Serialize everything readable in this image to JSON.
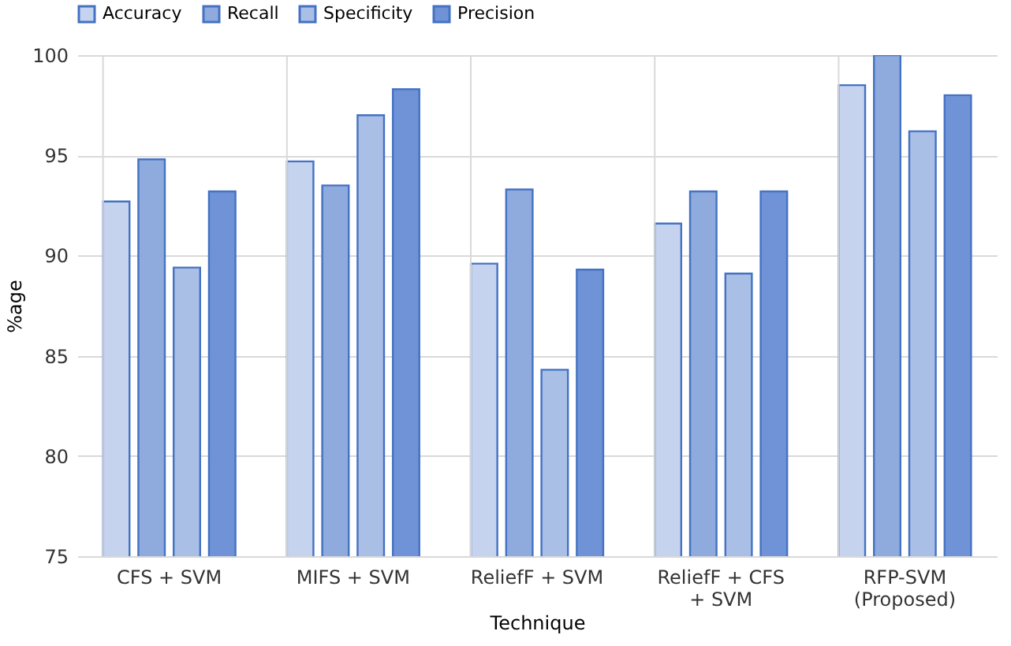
{
  "chart_data": {
    "type": "bar",
    "xlabel": "Technique",
    "ylabel": "%age",
    "categories": [
      "CFS + SVM",
      "MIFS + SVM",
      "ReliefF + SVM",
      "ReliefF + CFS + SVM",
      "RFP-SVM (Proposed)"
    ],
    "series": [
      {
        "name": "Accuracy",
        "color": "#c5d3ee",
        "values": [
          92.7,
          94.7,
          89.6,
          91.6,
          98.5
        ]
      },
      {
        "name": "Recall",
        "color": "#8faadc",
        "values": [
          94.8,
          93.5,
          93.3,
          93.2,
          100
        ]
      },
      {
        "name": "Specificity",
        "color": "#a9bfe6",
        "values": [
          89.4,
          97.0,
          84.3,
          89.1,
          96.2
        ]
      },
      {
        "name": "Precision",
        "color": "#6f93d6",
        "values": [
          93.2,
          98.3,
          89.3,
          93.2,
          98.0
        ]
      }
    ],
    "ylim": [
      75,
      100
    ],
    "yticks": [
      75,
      80,
      85,
      90,
      95,
      100
    ],
    "grid": true,
    "legend": "top"
  }
}
